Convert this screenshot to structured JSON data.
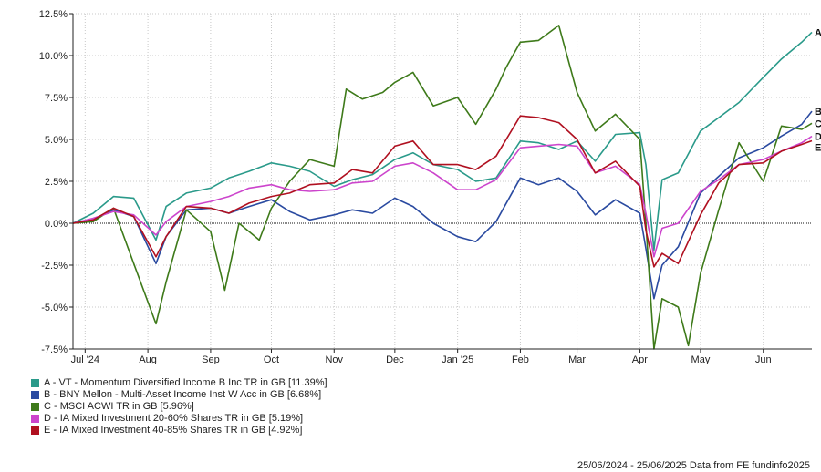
{
  "chart_data": {
    "type": "line",
    "ylim": [
      -7.5,
      12.5
    ],
    "y_ticks": [
      "12.5%",
      "10.0%",
      "7.5%",
      "5.0%",
      "2.5%",
      "0.0%",
      "-2.5%",
      "-5.0%",
      "-7.5%"
    ],
    "y_tick_values": [
      12.5,
      10.0,
      7.5,
      5.0,
      2.5,
      0.0,
      -2.5,
      -5.0,
      -7.5
    ],
    "x_ticks": [
      "Jul '24",
      "Aug",
      "Sep",
      "Oct",
      "Nov",
      "Dec",
      "Jan '25",
      "Feb",
      "Mar",
      "Apr",
      "May",
      "Jun"
    ],
    "x_tick_dates": [
      "2024-07-01",
      "2024-08-01",
      "2024-09-01",
      "2024-10-01",
      "2024-11-01",
      "2024-12-01",
      "2025-01-01",
      "2025-02-01",
      "2025-03-01",
      "2025-04-01",
      "2025-05-01",
      "2025-06-01"
    ],
    "x_range": [
      "2024-06-25",
      "2025-06-25"
    ],
    "grid": true,
    "zero_line": true,
    "legend_position": "bottom-left",
    "series": [
      {
        "letter": "A",
        "label": "A - VT - Momentum Diversified Income B Inc TR in GB [11.39%]",
        "color": "#2a9a8a",
        "points": [
          [
            "2024-06-25",
            0.0
          ],
          [
            "2024-07-05",
            0.6
          ],
          [
            "2024-07-15",
            1.6
          ],
          [
            "2024-07-25",
            1.5
          ],
          [
            "2024-08-05",
            -1.0
          ],
          [
            "2024-08-10",
            1.0
          ],
          [
            "2024-08-20",
            1.8
          ],
          [
            "2024-09-01",
            2.1
          ],
          [
            "2024-09-10",
            2.7
          ],
          [
            "2024-09-20",
            3.1
          ],
          [
            "2024-10-01",
            3.6
          ],
          [
            "2024-10-10",
            3.4
          ],
          [
            "2024-10-20",
            3.1
          ],
          [
            "2024-11-01",
            2.2
          ],
          [
            "2024-11-10",
            2.6
          ],
          [
            "2024-11-20",
            2.9
          ],
          [
            "2024-12-01",
            3.8
          ],
          [
            "2024-12-10",
            4.2
          ],
          [
            "2024-12-20",
            3.5
          ],
          [
            "2025-01-01",
            3.2
          ],
          [
            "2025-01-10",
            2.5
          ],
          [
            "2025-01-20",
            2.7
          ],
          [
            "2025-02-01",
            4.9
          ],
          [
            "2025-02-10",
            4.8
          ],
          [
            "2025-02-20",
            4.4
          ],
          [
            "2025-03-01",
            4.9
          ],
          [
            "2025-03-10",
            3.7
          ],
          [
            "2025-03-20",
            5.3
          ],
          [
            "2025-04-01",
            5.4
          ],
          [
            "2025-04-04",
            3.5
          ],
          [
            "2025-04-08",
            -1.6
          ],
          [
            "2025-04-12",
            2.6
          ],
          [
            "2025-04-20",
            3.0
          ],
          [
            "2025-05-01",
            5.5
          ],
          [
            "2025-05-10",
            6.3
          ],
          [
            "2025-05-20",
            7.2
          ],
          [
            "2025-06-01",
            8.7
          ],
          [
            "2025-06-10",
            9.8
          ],
          [
            "2025-06-20",
            10.8
          ],
          [
            "2025-06-25",
            11.39
          ]
        ]
      },
      {
        "letter": "B",
        "label": "B - BNY Mellon - Multi-Asset Income Inst W Acc in GB [6.68%]",
        "color": "#2a4aa0",
        "points": [
          [
            "2024-06-25",
            0.0
          ],
          [
            "2024-07-05",
            0.2
          ],
          [
            "2024-07-15",
            0.8
          ],
          [
            "2024-07-25",
            0.4
          ],
          [
            "2024-08-05",
            -2.4
          ],
          [
            "2024-08-10",
            -0.8
          ],
          [
            "2024-08-20",
            0.8
          ],
          [
            "2024-09-01",
            0.9
          ],
          [
            "2024-09-10",
            0.6
          ],
          [
            "2024-09-20",
            1.0
          ],
          [
            "2024-10-01",
            1.4
          ],
          [
            "2024-10-10",
            0.7
          ],
          [
            "2024-10-20",
            0.2
          ],
          [
            "2024-11-01",
            0.5
          ],
          [
            "2024-11-10",
            0.8
          ],
          [
            "2024-11-20",
            0.6
          ],
          [
            "2024-12-01",
            1.5
          ],
          [
            "2024-12-10",
            1.0
          ],
          [
            "2024-12-20",
            0.0
          ],
          [
            "2025-01-01",
            -0.8
          ],
          [
            "2025-01-10",
            -1.1
          ],
          [
            "2025-01-20",
            0.1
          ],
          [
            "2025-02-01",
            2.7
          ],
          [
            "2025-02-10",
            2.3
          ],
          [
            "2025-02-20",
            2.7
          ],
          [
            "2025-03-01",
            1.9
          ],
          [
            "2025-03-10",
            0.5
          ],
          [
            "2025-03-20",
            1.4
          ],
          [
            "2025-04-01",
            0.6
          ],
          [
            "2025-04-04",
            -1.5
          ],
          [
            "2025-04-08",
            -4.5
          ],
          [
            "2025-04-12",
            -2.5
          ],
          [
            "2025-04-20",
            -1.4
          ],
          [
            "2025-05-01",
            1.8
          ],
          [
            "2025-05-10",
            2.8
          ],
          [
            "2025-05-20",
            3.9
          ],
          [
            "2025-06-01",
            4.5
          ],
          [
            "2025-06-10",
            5.2
          ],
          [
            "2025-06-20",
            5.9
          ],
          [
            "2025-06-25",
            6.68
          ]
        ]
      },
      {
        "letter": "C",
        "label": "C - MSCI ACWI TR in GB [5.96%]",
        "color": "#3e7a1a",
        "points": [
          [
            "2024-06-25",
            0.0
          ],
          [
            "2024-07-05",
            0.1
          ],
          [
            "2024-07-15",
            0.9
          ],
          [
            "2024-07-25",
            -2.4
          ],
          [
            "2024-08-05",
            -6.0
          ],
          [
            "2024-08-10",
            -3.5
          ],
          [
            "2024-08-20",
            0.8
          ],
          [
            "2024-09-01",
            -0.5
          ],
          [
            "2024-09-08",
            -4.0
          ],
          [
            "2024-09-15",
            0.0
          ],
          [
            "2024-09-25",
            -1.0
          ],
          [
            "2024-10-01",
            0.9
          ],
          [
            "2024-10-10",
            2.5
          ],
          [
            "2024-10-20",
            3.8
          ],
          [
            "2024-11-01",
            3.4
          ],
          [
            "2024-11-07",
            8.0
          ],
          [
            "2024-11-15",
            7.4
          ],
          [
            "2024-11-25",
            7.8
          ],
          [
            "2024-12-01",
            8.4
          ],
          [
            "2024-12-10",
            9.0
          ],
          [
            "2024-12-20",
            7.0
          ],
          [
            "2025-01-01",
            7.5
          ],
          [
            "2025-01-10",
            5.9
          ],
          [
            "2025-01-20",
            8.0
          ],
          [
            "2025-01-25",
            9.3
          ],
          [
            "2025-02-01",
            10.8
          ],
          [
            "2025-02-10",
            10.9
          ],
          [
            "2025-02-20",
            11.8
          ],
          [
            "2025-03-01",
            7.8
          ],
          [
            "2025-03-10",
            5.5
          ],
          [
            "2025-03-20",
            6.5
          ],
          [
            "2025-04-01",
            5.0
          ],
          [
            "2025-04-04",
            0.0
          ],
          [
            "2025-04-08",
            -7.5
          ],
          [
            "2025-04-12",
            -4.5
          ],
          [
            "2025-04-20",
            -5.0
          ],
          [
            "2025-04-25",
            -7.3
          ],
          [
            "2025-05-01",
            -3.0
          ],
          [
            "2025-05-10",
            0.8
          ],
          [
            "2025-05-20",
            4.8
          ],
          [
            "2025-06-01",
            2.5
          ],
          [
            "2025-06-10",
            5.8
          ],
          [
            "2025-06-20",
            5.6
          ],
          [
            "2025-06-25",
            5.96
          ]
        ]
      },
      {
        "letter": "D",
        "label": "D - IA Mixed Investment 20-60% Shares TR in GB [5.19%]",
        "color": "#cc44cc",
        "points": [
          [
            "2024-06-25",
            0.0
          ],
          [
            "2024-07-05",
            0.3
          ],
          [
            "2024-07-15",
            0.7
          ],
          [
            "2024-07-25",
            0.5
          ],
          [
            "2024-08-05",
            -0.7
          ],
          [
            "2024-08-10",
            0.1
          ],
          [
            "2024-08-20",
            1.0
          ],
          [
            "2024-09-01",
            1.3
          ],
          [
            "2024-09-10",
            1.6
          ],
          [
            "2024-09-20",
            2.1
          ],
          [
            "2024-10-01",
            2.3
          ],
          [
            "2024-10-10",
            2.0
          ],
          [
            "2024-10-20",
            1.9
          ],
          [
            "2024-11-01",
            2.0
          ],
          [
            "2024-11-10",
            2.4
          ],
          [
            "2024-11-20",
            2.5
          ],
          [
            "2024-12-01",
            3.4
          ],
          [
            "2024-12-10",
            3.6
          ],
          [
            "2024-12-20",
            3.0
          ],
          [
            "2025-01-01",
            2.0
          ],
          [
            "2025-01-10",
            2.0
          ],
          [
            "2025-01-20",
            2.6
          ],
          [
            "2025-02-01",
            4.5
          ],
          [
            "2025-02-10",
            4.6
          ],
          [
            "2025-02-20",
            4.7
          ],
          [
            "2025-03-01",
            4.6
          ],
          [
            "2025-03-10",
            3.0
          ],
          [
            "2025-03-20",
            3.4
          ],
          [
            "2025-04-01",
            2.3
          ],
          [
            "2025-04-04",
            0.6
          ],
          [
            "2025-04-08",
            -2.0
          ],
          [
            "2025-04-12",
            -0.3
          ],
          [
            "2025-04-20",
            0.0
          ],
          [
            "2025-05-01",
            1.9
          ],
          [
            "2025-05-10",
            2.6
          ],
          [
            "2025-05-20",
            3.5
          ],
          [
            "2025-06-01",
            3.8
          ],
          [
            "2025-06-10",
            4.3
          ],
          [
            "2025-06-20",
            4.8
          ],
          [
            "2025-06-25",
            5.19
          ]
        ]
      },
      {
        "letter": "E",
        "label": "E - IA Mixed Investment 40-85% Shares TR in GB [4.92%]",
        "color": "#b01020",
        "points": [
          [
            "2024-06-25",
            0.0
          ],
          [
            "2024-07-05",
            0.2
          ],
          [
            "2024-07-15",
            0.9
          ],
          [
            "2024-07-25",
            0.4
          ],
          [
            "2024-08-05",
            -2.0
          ],
          [
            "2024-08-10",
            -0.8
          ],
          [
            "2024-08-20",
            1.0
          ],
          [
            "2024-09-01",
            0.9
          ],
          [
            "2024-09-10",
            0.6
          ],
          [
            "2024-09-20",
            1.2
          ],
          [
            "2024-10-01",
            1.6
          ],
          [
            "2024-10-10",
            1.8
          ],
          [
            "2024-10-20",
            2.3
          ],
          [
            "2024-11-01",
            2.4
          ],
          [
            "2024-11-10",
            3.2
          ],
          [
            "2024-11-20",
            3.0
          ],
          [
            "2024-12-01",
            4.6
          ],
          [
            "2024-12-10",
            4.9
          ],
          [
            "2024-12-20",
            3.5
          ],
          [
            "2025-01-01",
            3.5
          ],
          [
            "2025-01-10",
            3.2
          ],
          [
            "2025-01-20",
            4.0
          ],
          [
            "2025-02-01",
            6.4
          ],
          [
            "2025-02-10",
            6.3
          ],
          [
            "2025-02-20",
            6.0
          ],
          [
            "2025-03-01",
            5.0
          ],
          [
            "2025-03-10",
            3.0
          ],
          [
            "2025-03-20",
            3.7
          ],
          [
            "2025-04-01",
            2.2
          ],
          [
            "2025-04-04",
            -0.4
          ],
          [
            "2025-04-08",
            -2.6
          ],
          [
            "2025-04-12",
            -1.8
          ],
          [
            "2025-04-20",
            -2.4
          ],
          [
            "2025-05-01",
            0.5
          ],
          [
            "2025-05-10",
            2.4
          ],
          [
            "2025-05-20",
            3.5
          ],
          [
            "2025-06-01",
            3.6
          ],
          [
            "2025-06-10",
            4.3
          ],
          [
            "2025-06-20",
            4.7
          ],
          [
            "2025-06-25",
            4.92
          ]
        ]
      }
    ]
  },
  "footer": {
    "text": "25/06/2024 - 25/06/2025 Data from FE fundinfo2025"
  }
}
